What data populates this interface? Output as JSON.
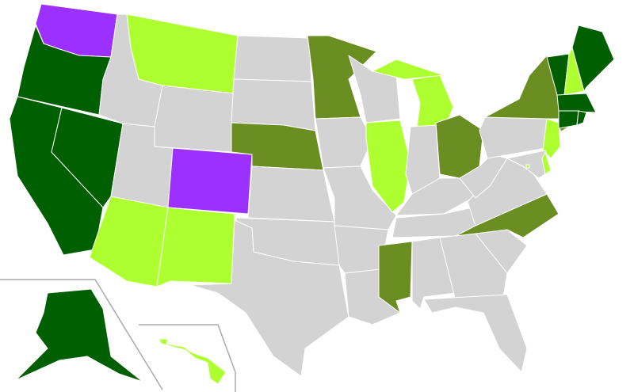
{
  "map": {
    "background": "#ffffff",
    "palette": {
      "dark_green": "#005f00",
      "olive": "#6b8e23",
      "light_green": "#adff2f",
      "purple": "#9b30ff",
      "gray": "#d3d3d3"
    },
    "states": {
      "WA": "purple",
      "OR": "dark_green",
      "CA": "dark_green",
      "NV": "dark_green",
      "ID": "gray",
      "MT": "light_green",
      "WY": "gray",
      "UT": "gray",
      "CO": "purple",
      "AZ": "light_green",
      "NM": "light_green",
      "ND": "gray",
      "SD": "gray",
      "NE": "olive",
      "KS": "gray",
      "OK": "gray",
      "TX": "gray",
      "MN": "olive",
      "IA": "gray",
      "MO": "gray",
      "AR": "gray",
      "LA": "gray",
      "WI": "gray",
      "IL": "light_green",
      "MI": "light_green",
      "MI_UP": "light_green",
      "IN": "gray",
      "OH": "olive",
      "KY": "gray",
      "TN": "gray",
      "MS": "olive",
      "AL": "gray",
      "GA": "gray",
      "FL": "gray",
      "SC": "gray",
      "NC": "olive",
      "VA": "gray",
      "WV": "gray",
      "PA": "gray",
      "NY": "olive",
      "LI": "olive",
      "NJ": "light_green",
      "MD": "gray",
      "DE": "light_green",
      "DC": "light_green",
      "VT": "dark_green",
      "NH": "light_green",
      "ME": "dark_green",
      "MA": "dark_green",
      "CT": "dark_green",
      "RI": "dark_green",
      "AK": "dark_green",
      "HI": "light_green"
    }
  }
}
